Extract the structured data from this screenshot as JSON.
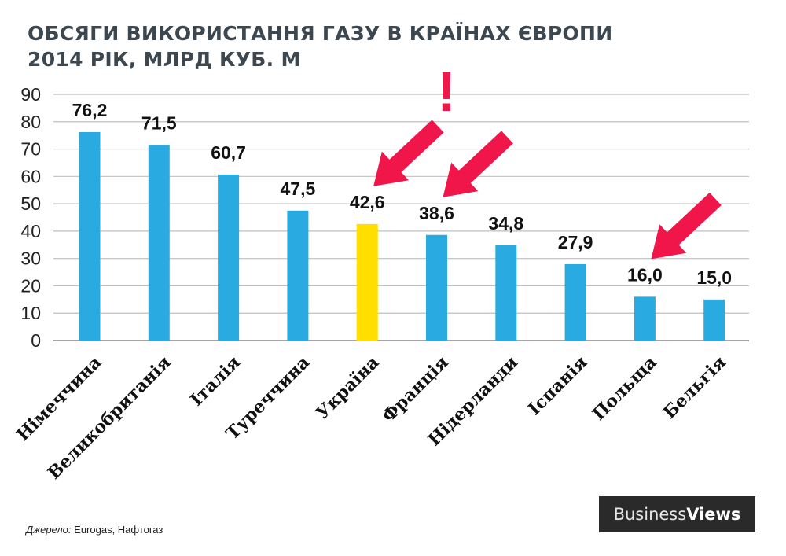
{
  "title_line1": "ОБСЯГИ ВИКОРИСТАННЯ ГАЗУ В КРАЇНАХ ЄВРОПИ",
  "title_line2": "2014 РІК, МЛРД КУБ. М",
  "source_label": "Джерело:",
  "source_text": " Eurogas, Нафтогаз",
  "logo": {
    "part1": "Business",
    "part2": "Views"
  },
  "exclamation": "!",
  "colors": {
    "bar": "#29abe2",
    "highlight": "#ffde00",
    "arrow": "#f0164a",
    "grid": "#bfbfbf",
    "exclamation": "#f0164a"
  },
  "chart_data": {
    "type": "bar",
    "title": "ОБСЯГИ ВИКОРИСТАННЯ ГАЗУ В КРАЇНАХ ЄВРОПИ 2014 РІК, МЛРД КУБ. М",
    "categories": [
      "Німеччина",
      "Великобританія",
      "Італія",
      "Туреччина",
      "Україна",
      "Франція",
      "Нідерланди",
      "Іспанія",
      "Польща",
      "Бельгія"
    ],
    "values": [
      76.2,
      71.5,
      60.7,
      47.5,
      42.6,
      38.6,
      34.8,
      27.9,
      16.0,
      15.0
    ],
    "value_labels": [
      "76,2",
      "71,5",
      "60,7",
      "47,5",
      "42,6",
      "38,6",
      "34,8",
      "27,9",
      "16,0",
      "15,0"
    ],
    "highlight_category": "Україна",
    "arrow_categories": [
      "Україна",
      "Франція",
      "Польща"
    ],
    "yticks": [
      "0",
      "10",
      "20",
      "30",
      "40",
      "50",
      "60",
      "70",
      "80",
      "90"
    ],
    "ylim": [
      0,
      90
    ],
    "grid": true
  }
}
